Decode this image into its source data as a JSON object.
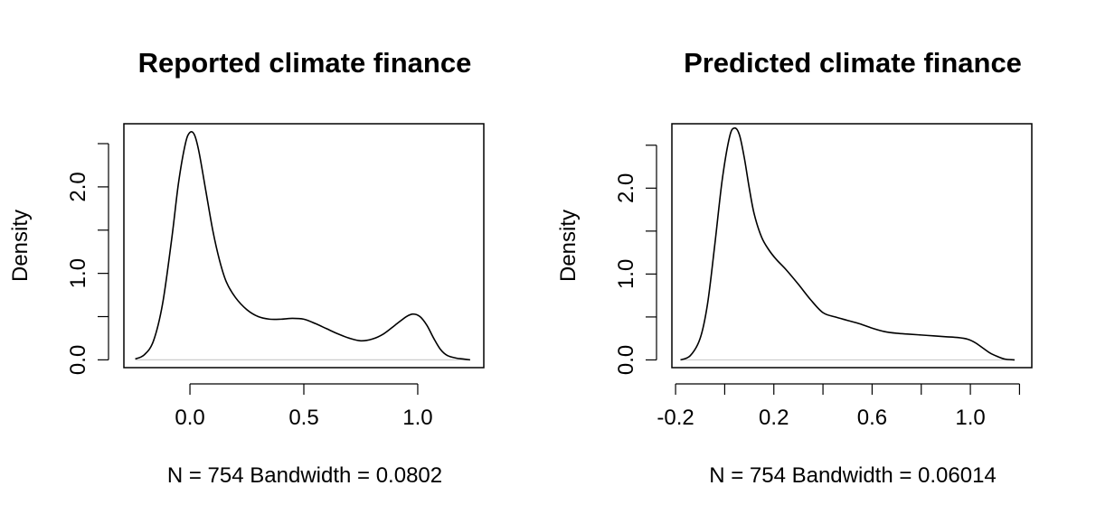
{
  "chart_data": [
    {
      "type": "line",
      "title": "Reported climate finance",
      "xlabel": "N = 754   Bandwidth = 0.0802",
      "ylabel": "Density",
      "xlim": [
        -0.29,
        1.29
      ],
      "ylim": [
        -0.09,
        2.73
      ],
      "x_ticks": [
        0.0,
        0.5,
        1.0
      ],
      "x_tick_labels": [
        "0.0",
        "0.5",
        "1.0"
      ],
      "y_ticks": [
        0.0,
        0.5,
        1.0,
        1.5,
        2.0,
        2.5
      ],
      "y_tick_labels": [
        "0.0",
        "",
        "1.0",
        "",
        "2.0",
        ""
      ],
      "grid": false,
      "baseline_color": "#cccccc",
      "series": [
        {
          "x": [
            -0.24,
            -0.2,
            -0.16,
            -0.12,
            -0.08,
            -0.05,
            -0.02,
            0.0,
            0.02,
            0.04,
            0.07,
            0.1,
            0.13,
            0.16,
            0.2,
            0.25,
            0.3,
            0.35,
            0.4,
            0.45,
            0.5,
            0.55,
            0.6,
            0.65,
            0.7,
            0.75,
            0.8,
            0.85,
            0.9,
            0.95,
            0.98,
            1.01,
            1.04,
            1.07,
            1.1,
            1.13,
            1.17,
            1.2,
            1.23
          ],
          "y": [
            0.01,
            0.06,
            0.22,
            0.65,
            1.4,
            2.05,
            2.5,
            2.63,
            2.6,
            2.4,
            1.95,
            1.5,
            1.15,
            0.9,
            0.72,
            0.58,
            0.5,
            0.47,
            0.47,
            0.48,
            0.47,
            0.42,
            0.36,
            0.3,
            0.25,
            0.22,
            0.24,
            0.3,
            0.4,
            0.5,
            0.53,
            0.5,
            0.4,
            0.25,
            0.12,
            0.05,
            0.02,
            0.01,
            0.0
          ]
        }
      ]
    },
    {
      "type": "line",
      "title": "Predicted climate finance",
      "xlabel": "N = 754   Bandwidth = 0.06014",
      "ylabel": "Density",
      "xlim": [
        -0.215,
        1.25
      ],
      "ylim": [
        -0.09,
        2.75
      ],
      "x_ticks": [
        -0.2,
        0.0,
        0.2,
        0.4,
        0.6,
        0.8,
        1.0,
        1.2
      ],
      "x_tick_labels": [
        "-0.2",
        "",
        "0.2",
        "",
        "0.6",
        "",
        "1.0",
        ""
      ],
      "y_ticks": [
        0.0,
        0.5,
        1.0,
        1.5,
        2.0,
        2.5
      ],
      "y_tick_labels": [
        "0.0",
        "",
        "1.0",
        "",
        "2.0",
        ""
      ],
      "grid": false,
      "baseline_color": "#cccccc",
      "series": [
        {
          "x": [
            -0.18,
            -0.14,
            -0.1,
            -0.07,
            -0.04,
            -0.01,
            0.02,
            0.04,
            0.06,
            0.08,
            0.1,
            0.12,
            0.15,
            0.18,
            0.21,
            0.25,
            0.3,
            0.35,
            0.4,
            0.45,
            0.5,
            0.55,
            0.6,
            0.65,
            0.7,
            0.75,
            0.8,
            0.85,
            0.9,
            0.95,
            0.99,
            1.02,
            1.05,
            1.08,
            1.11,
            1.14,
            1.18
          ],
          "y": [
            0.0,
            0.05,
            0.25,
            0.65,
            1.35,
            2.1,
            2.6,
            2.7,
            2.62,
            2.35,
            2.0,
            1.7,
            1.43,
            1.28,
            1.17,
            1.05,
            0.88,
            0.7,
            0.55,
            0.5,
            0.46,
            0.42,
            0.37,
            0.33,
            0.31,
            0.3,
            0.29,
            0.28,
            0.27,
            0.26,
            0.24,
            0.2,
            0.14,
            0.08,
            0.04,
            0.01,
            0.0
          ]
        }
      ]
    }
  ]
}
